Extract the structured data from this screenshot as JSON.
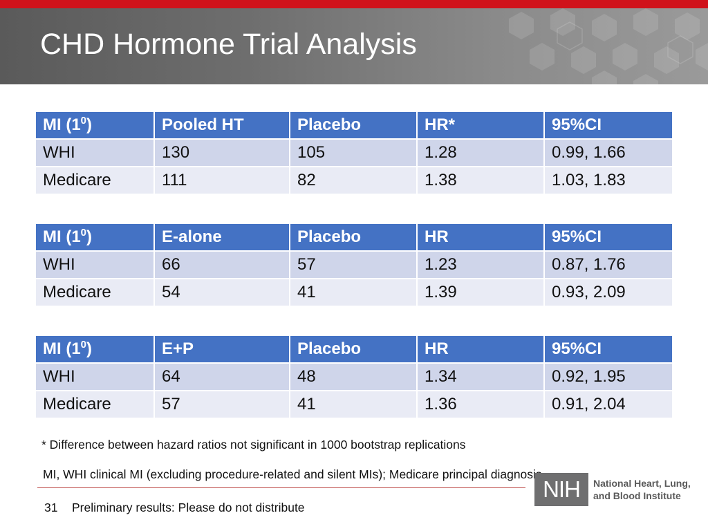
{
  "slide": {
    "title": "CHD Hormone Trial Analysis",
    "footnote": "* Difference between hazard ratios not significant in 1000 bootstrap replications",
    "definition": "MI, WHI clinical MI (excluding procedure-related and silent MIs); Medicare principal diagnosis",
    "page_number": "31",
    "footer_text": "Preliminary results:  Please do not distribute"
  },
  "logo": {
    "mark": "NIH",
    "name_line1": "National Heart, Lung,",
    "name_line2": "and Blood Institute"
  },
  "colors": {
    "top_bar": "#d0121b",
    "table_header": "#4472c4",
    "row_band_1": "#cfd5ea",
    "row_band_2": "#e9ebf5"
  },
  "tables": [
    {
      "headers": [
        "MI  (1",
        "Pooled HT",
        "Placebo",
        "HR*",
        "95%CI"
      ],
      "header_sup": "0",
      "header_suffix": ")",
      "rows": [
        [
          "WHI",
          "130",
          "105",
          "1.28",
          "0.99, 1.66"
        ],
        [
          "Medicare",
          "111",
          "82",
          "1.38",
          "1.03, 1.83"
        ]
      ]
    },
    {
      "headers": [
        "MI  (1",
        "E-alone",
        "Placebo",
        "HR",
        "95%CI"
      ],
      "header_sup": "0",
      "header_suffix": ")",
      "rows": [
        [
          "WHI",
          "66",
          "57",
          "1.23",
          "0.87, 1.76"
        ],
        [
          "Medicare",
          "54",
          "41",
          "1.39",
          "0.93, 2.09"
        ]
      ]
    },
    {
      "headers": [
        "MI  (1",
        "E+P",
        "Placebo",
        "HR",
        "95%CI"
      ],
      "header_sup": "0",
      "header_suffix": ")",
      "rows": [
        [
          "WHI",
          "64",
          "48",
          "1.34",
          "0.92, 1.95"
        ],
        [
          "Medicare",
          "57",
          "41",
          "1.36",
          "0.91, 2.04"
        ]
      ]
    }
  ]
}
